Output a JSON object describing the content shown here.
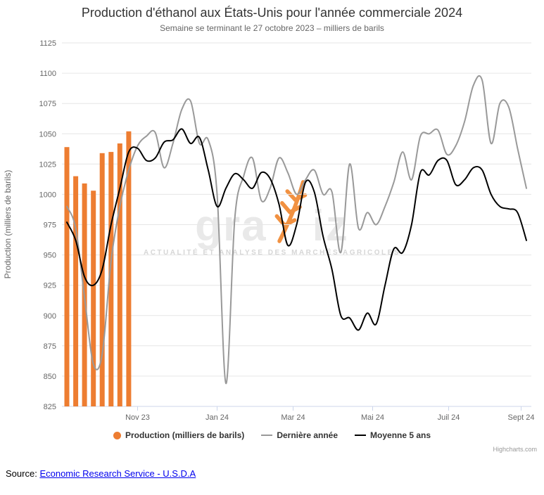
{
  "chart": {
    "title": "Production d'éthanol aux États-Unis pour l'année commerciale 2024",
    "subtitle": "Semaine se terminant le 27 octobre 2023 – milliers de barils",
    "y_axis_title": "Production (milliers de barils)",
    "credits": "Highcharts.com",
    "watermark": {
      "left": "gra",
      "right": "iz",
      "tagline": "ACTUALITÉ ET ANALYSE DES MARCHÉS AGRICOLES",
      "color": "#f0862d"
    },
    "legend": [
      {
        "label": "Production (milliers de barils)",
        "marker": "circle",
        "color": "#ed7d31"
      },
      {
        "label": "Dernière année",
        "marker": "line",
        "color": "#999999"
      },
      {
        "label": "Moyenne 5 ans",
        "marker": "line",
        "color": "#000000"
      }
    ]
  },
  "chart_data": {
    "type": "mixed-bar-line",
    "title": "Production d'éthanol aux États-Unis pour l'année commerciale 2024",
    "subtitle": "Semaine se terminant le 27 octobre 2023 – milliers de barils",
    "ylabel": "Production (milliers de barils)",
    "xlabel": "",
    "grid": true,
    "legend_position": "bottom",
    "ylim": [
      825,
      1125
    ],
    "y_tick_step": 25,
    "weeks_total": 53,
    "x_ticks": [
      {
        "label": "Nov 23",
        "week": 8.0
      },
      {
        "label": "Jan 24",
        "week": 17.0
      },
      {
        "label": "Mar 24",
        "week": 25.6
      },
      {
        "label": "Mai 24",
        "week": 34.6
      },
      {
        "label": "Juil 24",
        "week": 43.2
      },
      {
        "label": "Sept 24",
        "week": 51.4
      }
    ],
    "series": [
      {
        "name": "Production (milliers de barils)",
        "type": "bar",
        "color": "#ed7d31",
        "start_week": 0,
        "values": [
          1039,
          1015,
          1009,
          1003,
          1034,
          1035,
          1042,
          1052
        ]
      },
      {
        "name": "Dernière année",
        "type": "line",
        "color": "#999999",
        "start_week": 0,
        "values": [
          990,
          972,
          915,
          860,
          868,
          945,
          990,
          1020,
          1040,
          1048,
          1051,
          1022,
          1042,
          1070,
          1077,
          1042,
          1045,
          1000,
          844,
          980,
          1015,
          1030,
          995,
          1005,
          1030,
          1018,
          1000,
          1012,
          1020,
          1000,
          1002,
          952,
          1025,
          972,
          985,
          975,
          990,
          1010,
          1035,
          1012,
          1048,
          1050,
          1053,
          1033,
          1040,
          1060,
          1090,
          1094,
          1042,
          1075,
          1072,
          1038,
          1005
        ]
      },
      {
        "name": "Moyenne 5 ans",
        "type": "line",
        "color": "#000000",
        "start_week": 0,
        "values": [
          977,
          962,
          932,
          925,
          938,
          975,
          1005,
          1035,
          1038,
          1028,
          1030,
          1043,
          1045,
          1054,
          1042,
          1047,
          1020,
          990,
          1005,
          1017,
          1012,
          1005,
          1018,
          1013,
          992,
          958,
          975,
          1010,
          1002,
          965,
          938,
          900,
          898,
          888,
          902,
          893,
          925,
          955,
          952,
          975,
          1018,
          1016,
          1028,
          1028,
          1008,
          1012,
          1022,
          1020,
          1000,
          990,
          988,
          985,
          962
        ]
      }
    ]
  },
  "source": {
    "label": "Source:",
    "link": "Economic Research Service - U.S.D.A"
  }
}
